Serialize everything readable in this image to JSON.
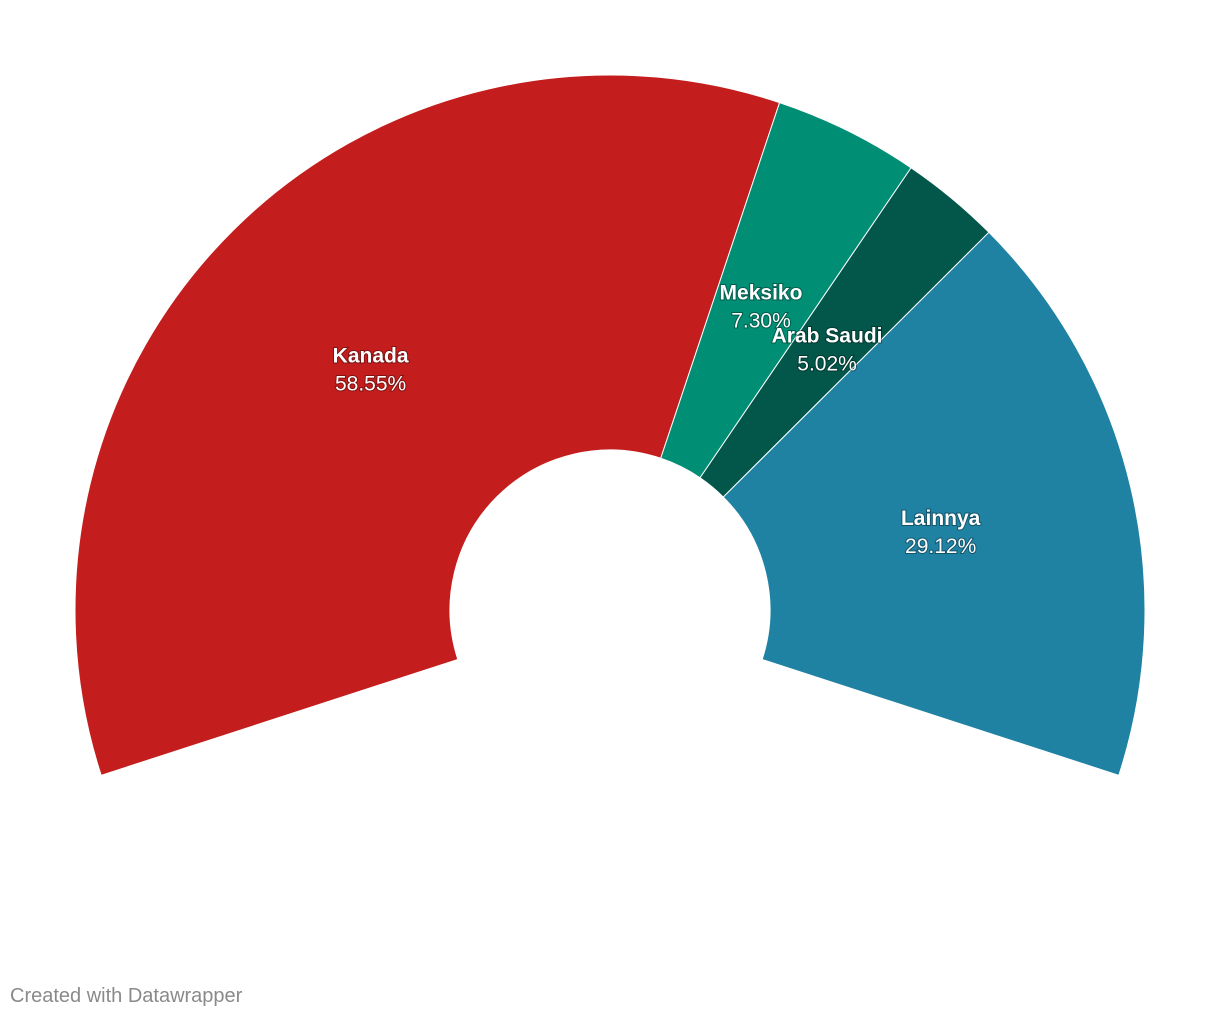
{
  "chart_data": {
    "type": "pie",
    "variant": "semi-donut",
    "title": "",
    "slices": [
      {
        "label": "Kanada",
        "value": 58.55,
        "value_label": "58.55%",
        "color": "#c41d1d"
      },
      {
        "label": "Meksiko",
        "value": 7.3,
        "value_label": "7.30%",
        "color": "#008e74"
      },
      {
        "label": "Arab Saudi",
        "value": 5.02,
        "value_label": "5.02%",
        "color": "#02574a"
      },
      {
        "label": "Lainnya",
        "value": 29.12,
        "value_label": "29.12%",
        "color": "#1f82a3"
      }
    ]
  },
  "footer": {
    "credit": "Created with Datawrapper"
  }
}
